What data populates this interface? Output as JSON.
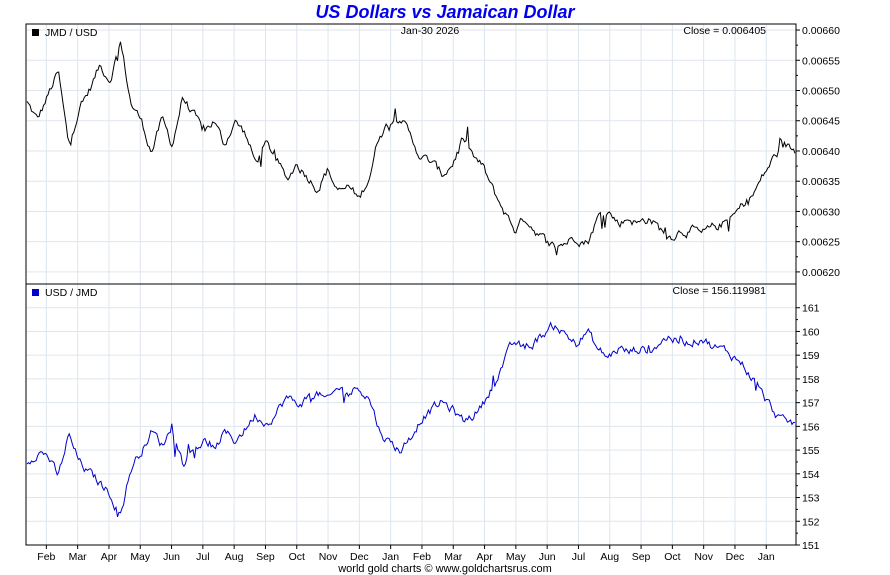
{
  "title": "US Dollars vs Jamaican Dollar",
  "footer": "world gold charts © www.goldchartsrus.com",
  "date_label": "Jan-30  2026",
  "colors": {
    "title": "#0000ee",
    "series_top": "#000000",
    "series_bottom": "#0000cc",
    "grid": "#dde6ee"
  },
  "chart_data": [
    {
      "type": "line",
      "legend": "JMD / USD",
      "close_label": "Close = 0.006405",
      "ylim": [
        0.00618,
        0.00661
      ],
      "yticks": [
        0.0062,
        0.00625,
        0.0063,
        0.00635,
        0.0064,
        0.00645,
        0.0065,
        0.00655,
        0.0066
      ],
      "ytick_labels": [
        "0.00620",
        "0.00625",
        "0.00630",
        "0.00635",
        "0.00640",
        "0.00645",
        "0.00650",
        "0.00655",
        "0.00660"
      ],
      "anchors": [
        [
          0,
          0.00648
        ],
        [
          1,
          0.00645
        ],
        [
          2,
          0.00649
        ],
        [
          3,
          0.00653
        ],
        [
          4,
          0.00641
        ],
        [
          5,
          0.00647
        ],
        [
          6,
          0.0065
        ],
        [
          7,
          0.00654
        ],
        [
          8,
          0.00652
        ],
        [
          9,
          0.00658
        ],
        [
          10,
          0.00648
        ],
        [
          11,
          0.00645
        ],
        [
          12,
          0.0064
        ],
        [
          13,
          0.00645
        ],
        [
          14,
          0.00641
        ],
        [
          15,
          0.00649
        ],
        [
          16,
          0.00646
        ],
        [
          17,
          0.00643
        ],
        [
          18,
          0.00645
        ],
        [
          19,
          0.00641
        ],
        [
          20,
          0.00645
        ],
        [
          21,
          0.00643
        ],
        [
          22,
          0.00638
        ],
        [
          23,
          0.00641
        ],
        [
          24,
          0.00639
        ],
        [
          25,
          0.00635
        ],
        [
          26,
          0.00638
        ],
        [
          27,
          0.00636
        ],
        [
          28,
          0.00634
        ],
        [
          29,
          0.00637
        ],
        [
          30,
          0.00633
        ],
        [
          31,
          0.00634
        ],
        [
          32,
          0.00632
        ],
        [
          33,
          0.00636
        ],
        [
          34,
          0.00643
        ],
        [
          35,
          0.00645
        ],
        [
          36,
          0.00646
        ],
        [
          37,
          0.00642
        ],
        [
          38,
          0.00639
        ],
        [
          39,
          0.00638
        ],
        [
          40,
          0.00636
        ],
        [
          41,
          0.00638
        ],
        [
          42,
          0.00642
        ],
        [
          43,
          0.00639
        ],
        [
          44,
          0.00637
        ],
        [
          45,
          0.00633
        ],
        [
          46,
          0.0063
        ],
        [
          47,
          0.00627
        ],
        [
          48,
          0.00629
        ],
        [
          49,
          0.00627
        ],
        [
          50,
          0.00625
        ],
        [
          51,
          0.00624
        ],
        [
          52,
          0.00625
        ],
        [
          53,
          0.00626
        ],
        [
          54,
          0.00625
        ],
        [
          55,
          0.00629
        ],
        [
          56,
          0.0063
        ],
        [
          57,
          0.00628
        ],
        [
          58,
          0.00629
        ],
        [
          59,
          0.00628
        ],
        [
          60,
          0.00629
        ],
        [
          61,
          0.00627
        ],
        [
          62,
          0.00626
        ],
        [
          63,
          0.00627
        ],
        [
          64,
          0.00627
        ],
        [
          65,
          0.00626
        ],
        [
          66,
          0.00627
        ],
        [
          67,
          0.00628
        ],
        [
          68,
          0.00629
        ],
        [
          69,
          0.00631
        ],
        [
          70,
          0.00633
        ],
        [
          71,
          0.00636
        ],
        [
          72,
          0.00639
        ],
        [
          73,
          0.00641
        ],
        [
          74,
          0.0064
        ]
      ],
      "points": 510
    },
    {
      "type": "line",
      "legend": "USD / JMD",
      "close_label": "Close = 156.119981",
      "ylim": [
        151,
        162
      ],
      "yticks": [
        151,
        152,
        153,
        154,
        155,
        156,
        157,
        158,
        159,
        160,
        161
      ],
      "ytick_labels": [
        "151",
        "152",
        "153",
        "154",
        "155",
        "156",
        "157",
        "158",
        "159",
        "160",
        "161"
      ],
      "anchors": [
        [
          0,
          154.5
        ],
        [
          1,
          155.0
        ],
        [
          2,
          154.8
        ],
        [
          3,
          153.8
        ],
        [
          4,
          155.6
        ],
        [
          5,
          154.5
        ],
        [
          6,
          154.0
        ],
        [
          7,
          153.6
        ],
        [
          8,
          153.2
        ],
        [
          9,
          152.3
        ],
        [
          10,
          154.2
        ],
        [
          11,
          155.0
        ],
        [
          12,
          155.8
        ],
        [
          13,
          155.2
        ],
        [
          14,
          156.0
        ],
        [
          15,
          154.5
        ],
        [
          16,
          155.0
        ],
        [
          17,
          155.4
        ],
        [
          18,
          155.0
        ],
        [
          19,
          155.7
        ],
        [
          20,
          155.4
        ],
        [
          21,
          155.9
        ],
        [
          22,
          156.5
        ],
        [
          23,
          156.2
        ],
        [
          24,
          156.6
        ],
        [
          25,
          157.2
        ],
        [
          26,
          156.9
        ],
        [
          27,
          157.2
        ],
        [
          28,
          157.4
        ],
        [
          29,
          157.0
        ],
        [
          30,
          157.6
        ],
        [
          31,
          157.4
        ],
        [
          32,
          157.7
        ],
        [
          33,
          157.2
        ],
        [
          34,
          155.8
        ],
        [
          35,
          155.3
        ],
        [
          36,
          155.0
        ],
        [
          37,
          155.6
        ],
        [
          38,
          156.4
        ],
        [
          39,
          156.7
        ],
        [
          40,
          157.0
        ],
        [
          41,
          156.7
        ],
        [
          42,
          156.2
        ],
        [
          43,
          156.5
        ],
        [
          44,
          157.0
        ],
        [
          45,
          157.9
        ],
        [
          46,
          158.8
        ],
        [
          47,
          159.5
        ],
        [
          48,
          159.2
        ],
        [
          49,
          159.6
        ],
        [
          50,
          160.0
        ],
        [
          51,
          160.3
        ],
        [
          52,
          159.8
        ],
        [
          53,
          159.5
        ],
        [
          54,
          160.0
        ],
        [
          55,
          159.2
        ],
        [
          56,
          158.9
        ],
        [
          57,
          159.3
        ],
        [
          58,
          159.1
        ],
        [
          59,
          159.3
        ],
        [
          60,
          159.2
        ],
        [
          61,
          159.6
        ],
        [
          62,
          159.8
        ],
        [
          63,
          159.5
        ],
        [
          64,
          159.6
        ],
        [
          65,
          159.8
        ],
        [
          66,
          159.4
        ],
        [
          67,
          159.2
        ],
        [
          68,
          159.0
        ],
        [
          69,
          158.6
        ],
        [
          70,
          158.0
        ],
        [
          71,
          157.2
        ],
        [
          72,
          156.6
        ],
        [
          73,
          156.1
        ],
        [
          74,
          156.1
        ]
      ],
      "points": 510
    }
  ],
  "x_months": [
    "Feb",
    "Mar",
    "Apr",
    "May",
    "Jun",
    "Jul",
    "Aug",
    "Sep",
    "Oct",
    "Nov",
    "Dec",
    "Jan",
    "Feb",
    "Mar",
    "Apr",
    "May",
    "Jun",
    "Jul",
    "Aug",
    "Sep",
    "Oct",
    "Nov",
    "Dec",
    "Jan"
  ]
}
